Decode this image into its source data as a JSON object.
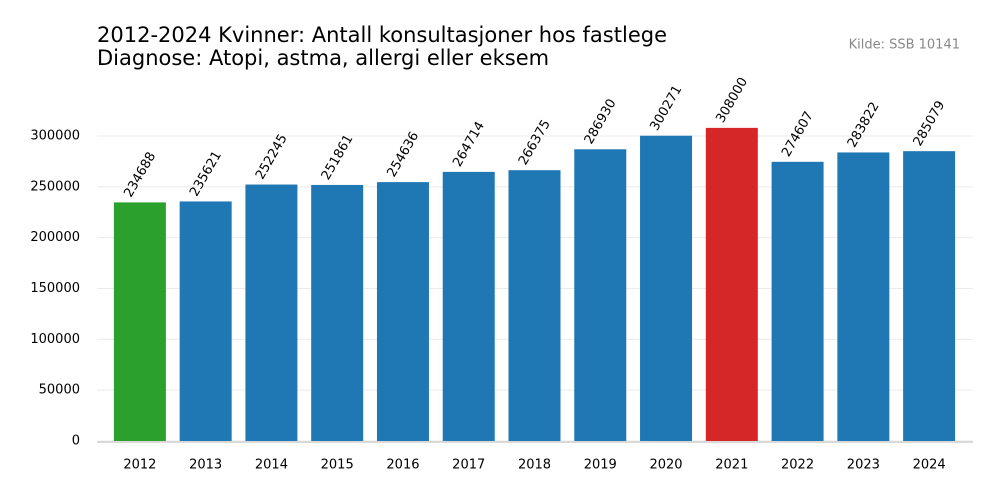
{
  "chart_data": {
    "type": "bar",
    "title": "2012-2024 Kvinner: Antall konsultasjoner hos fastlege",
    "subtitle": "Diagnose: Atopi, astma, allergi eller eksem",
    "source": "Kilde: SSB 10141",
    "categories": [
      "2012",
      "2013",
      "2014",
      "2015",
      "2016",
      "2017",
      "2018",
      "2019",
      "2020",
      "2021",
      "2022",
      "2023",
      "2024"
    ],
    "values": [
      234688,
      235621,
      252245,
      251861,
      254636,
      264714,
      266375,
      286930,
      300271,
      308000,
      274607,
      283822,
      285079
    ],
    "colors": [
      "#2ca02c",
      "#1f77b4",
      "#1f77b4",
      "#1f77b4",
      "#1f77b4",
      "#1f77b4",
      "#1f77b4",
      "#1f77b4",
      "#1f77b4",
      "#d62728",
      "#1f77b4",
      "#1f77b4",
      "#1f77b4"
    ],
    "ylim": [
      0,
      330000
    ],
    "yticks": [
      0,
      50000,
      100000,
      150000,
      200000,
      250000,
      300000
    ],
    "grid": true
  }
}
